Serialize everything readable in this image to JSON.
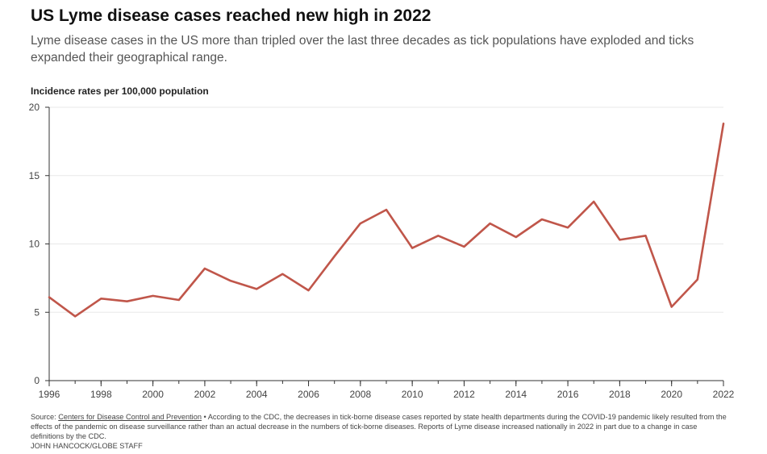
{
  "header": {
    "title": "US Lyme disease cases reached new high in 2022",
    "subtitle": "Lyme disease cases in the US more than tripled over the last three decades as tick populations have exploded and ticks expanded their geographical range."
  },
  "colors": {
    "line": "#c0564a",
    "grid": "#e8e8e8",
    "axis": "#333333"
  },
  "chart_data": {
    "type": "line",
    "title": "US Lyme disease cases reached new high in 2022",
    "ylabel": "Incidence rates per 100,000 population",
    "xlabel": "",
    "xlim": [
      1996,
      2022
    ],
    "ylim": [
      0,
      20
    ],
    "yticks": [
      0,
      5,
      10,
      15,
      20
    ],
    "xticks": [
      1996,
      1998,
      2000,
      2002,
      2004,
      2006,
      2008,
      2010,
      2012,
      2014,
      2016,
      2018,
      2020,
      2022
    ],
    "grid": true,
    "x": [
      1996,
      1997,
      1998,
      1999,
      2000,
      2001,
      2002,
      2003,
      2004,
      2005,
      2006,
      2007,
      2008,
      2009,
      2010,
      2011,
      2012,
      2013,
      2014,
      2015,
      2016,
      2017,
      2018,
      2019,
      2020,
      2021,
      2022
    ],
    "series": [
      {
        "values": [
          6.1,
          4.7,
          6.0,
          5.8,
          6.2,
          5.9,
          8.2,
          7.3,
          6.7,
          7.8,
          6.6,
          9.1,
          11.5,
          12.5,
          9.7,
          10.6,
          9.8,
          11.5,
          10.5,
          11.8,
          11.2,
          13.1,
          10.3,
          10.6,
          5.4,
          7.4,
          18.8
        ]
      }
    ]
  },
  "footer": {
    "source_prefix": "Source: ",
    "source_link": "Centers for Disease Control and Prevention",
    "note": " • According to the CDC, the decreases in tick-borne disease cases reported by state health departments during the COVID-19 pandemic likely resulted from the effects of the pandemic on disease surveillance rather than an actual decrease in the numbers of tick-borne diseases. Reports of Lyme disease increased nationally in 2022 in part due to a change in case definitions by the CDC.",
    "credit": "JOHN HANCOCK/GLOBE STAFF"
  }
}
